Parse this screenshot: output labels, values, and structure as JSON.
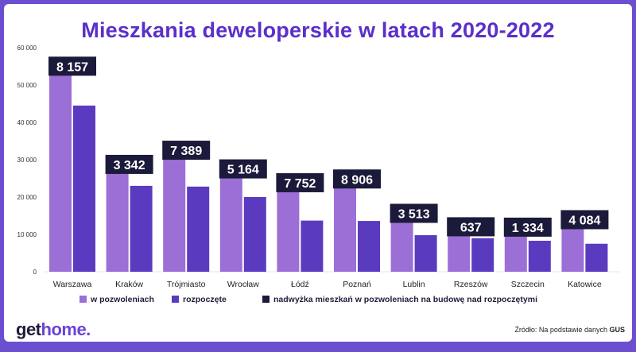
{
  "chart_data": {
    "type": "bar",
    "title": "Mieszkania deweloperskie w latach 2020-2022",
    "categories": [
      "Warszawa",
      "Kraków",
      "Trójmiasto",
      "Wrocław",
      "Łódź",
      "Poznań",
      "Lublin",
      "Rzeszów",
      "Szczecin",
      "Katowice"
    ],
    "series": [
      {
        "name": "w pozwoleniach",
        "color": "#9b6fd6",
        "values": [
          52700,
          26400,
          30200,
          25200,
          21500,
          22500,
          13300,
          9700,
          9600,
          11600
        ]
      },
      {
        "name": "rozpoczęte",
        "color": "#5a3bbf",
        "values": [
          44500,
          23000,
          22800,
          20000,
          13700,
          13600,
          9800,
          9000,
          8300,
          7500
        ]
      }
    ],
    "surplus_labels": [
      "8 157",
      "3 342",
      "7 389",
      "5 164",
      "7 752",
      "8 906",
      "3 513",
      "637",
      "1 334",
      "4 084"
    ],
    "surplus_legend": "nadwyżka mieszkań w pozwoleniach na budowę nad rozpoczętymi",
    "surplus_color": "#1c1a3a",
    "yticks": [
      "0",
      "10 000",
      "20 000",
      "30 000",
      "40 000",
      "50 000",
      "60 000"
    ],
    "ylim": [
      0,
      60000
    ],
    "grid": false,
    "legend_position": "bottom"
  },
  "footer": {
    "brand_prefix": "get",
    "brand_accent": "home.",
    "source_prefix": "Źródło: Na podstawie danych ",
    "source_bold": "GUS"
  }
}
